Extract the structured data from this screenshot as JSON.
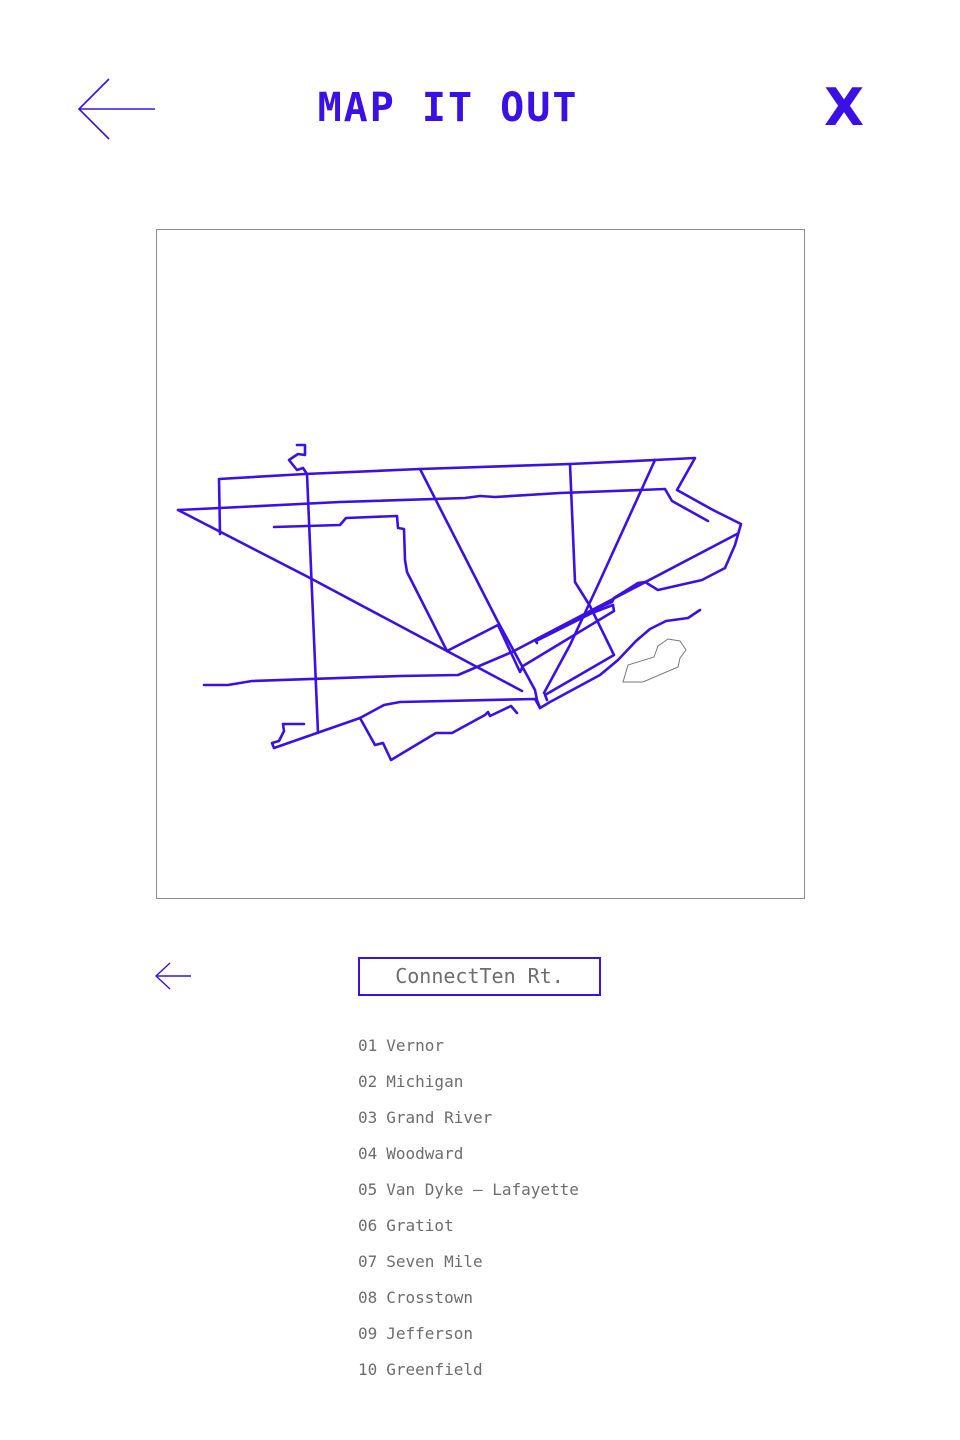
{
  "header": {
    "title": "MAP IT OUT",
    "close_label": "X"
  },
  "colors": {
    "accent": "#3a10e5",
    "text_muted": "#6d6d6d",
    "frame_border": "#8c8c8c"
  },
  "icons": {
    "back": "arrow-left-icon",
    "route_back": "arrow-left-icon",
    "close": "close-icon"
  },
  "route": {
    "name": "ConnectTen Rt.",
    "stops": [
      {
        "num": "01",
        "name": "Vernor"
      },
      {
        "num": "02",
        "name": "Michigan"
      },
      {
        "num": "03",
        "name": "Grand River"
      },
      {
        "num": "04",
        "name": "Woodward"
      },
      {
        "num": "05",
        "name": "Van Dyke — Lafayette"
      },
      {
        "num": "06",
        "name": "Gratiot"
      },
      {
        "num": "07",
        "name": "Seven Mile"
      },
      {
        "num": "08",
        "name": "Crosstown"
      },
      {
        "num": "09",
        "name": "Jefferson"
      },
      {
        "num": "10",
        "name": "Greenfield"
      }
    ]
  }
}
